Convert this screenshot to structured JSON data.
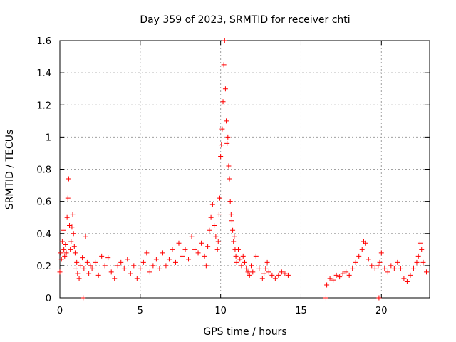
{
  "chart_data": {
    "type": "scatter",
    "title": "Day 359 of 2023, SRMTID for receiver chti",
    "xlabel": "GPS time / hours",
    "ylabel": "SRMTID / TECUs",
    "xlim": [
      0,
      23
    ],
    "ylim": [
      0,
      1.6
    ],
    "x_ticks": [
      0,
      5,
      10,
      15,
      20
    ],
    "y_ticks": [
      0,
      0.2,
      0.4,
      0.6,
      0.8,
      1,
      1.2,
      1.4,
      1.6
    ],
    "x_tick_labels": [
      "0",
      "5",
      "10",
      "15",
      "20"
    ],
    "y_tick_labels": [
      "0",
      "0.2",
      "0.4",
      "0.6",
      "0.8",
      "1",
      "1.2",
      "1.4",
      "1.6"
    ],
    "grid": true,
    "marker": "+",
    "series": [
      {
        "name": "SRMTID",
        "color": "#ff0000",
        "x": [
          0.0,
          0.05,
          0.1,
          0.15,
          0.2,
          0.25,
          0.3,
          0.35,
          0.4,
          0.45,
          0.5,
          0.55,
          0.6,
          0.65,
          0.7,
          0.75,
          0.8,
          0.85,
          0.9,
          0.95,
          1.0,
          1.05,
          1.1,
          1.2,
          1.3,
          1.4,
          1.5,
          1.6,
          1.7,
          1.8,
          1.9,
          2.0,
          2.2,
          2.4,
          2.6,
          2.8,
          3.0,
          3.2,
          3.4,
          3.6,
          3.8,
          4.0,
          4.2,
          4.4,
          4.6,
          4.8,
          5.0,
          5.2,
          5.4,
          5.6,
          5.8,
          6.0,
          6.2,
          6.4,
          6.6,
          6.8,
          7.0,
          7.2,
          7.4,
          7.6,
          7.8,
          8.0,
          8.2,
          8.4,
          8.6,
          8.8,
          9.0,
          9.1,
          9.2,
          9.3,
          9.4,
          9.5,
          9.6,
          9.7,
          9.8,
          9.85,
          9.9,
          9.95,
          10.0,
          10.05,
          10.1,
          10.15,
          10.2,
          10.25,
          10.3,
          10.35,
          10.4,
          10.45,
          10.5,
          10.55,
          10.6,
          10.65,
          10.7,
          10.75,
          10.8,
          10.85,
          10.9,
          10.95,
          11.0,
          11.1,
          11.2,
          11.3,
          11.4,
          11.5,
          11.6,
          11.7,
          11.8,
          11.9,
          12.0,
          12.2,
          12.4,
          12.6,
          12.7,
          12.8,
          12.9,
          13.0,
          13.2,
          13.4,
          13.6,
          13.8,
          14.0,
          14.2,
          1.45,
          16.55,
          16.6,
          16.8,
          17.0,
          17.2,
          17.4,
          17.6,
          17.8,
          18.0,
          18.2,
          18.4,
          18.6,
          18.8,
          18.9,
          19.0,
          19.2,
          19.4,
          19.6,
          19.8,
          19.9,
          20.0,
          20.2,
          20.4,
          20.6,
          20.8,
          21.0,
          21.2,
          21.4,
          21.6,
          21.8,
          22.0,
          22.2,
          22.3,
          22.4,
          22.5,
          22.6,
          22.8,
          19.85
        ],
        "y": [
          0.16,
          0.28,
          0.24,
          0.35,
          0.42,
          0.3,
          0.26,
          0.33,
          0.28,
          0.5,
          0.62,
          0.74,
          0.45,
          0.3,
          0.35,
          0.44,
          0.52,
          0.4,
          0.32,
          0.28,
          0.18,
          0.22,
          0.15,
          0.12,
          0.2,
          0.25,
          0.18,
          0.38,
          0.22,
          0.15,
          0.2,
          0.18,
          0.22,
          0.14,
          0.26,
          0.2,
          0.25,
          0.16,
          0.12,
          0.2,
          0.22,
          0.18,
          0.24,
          0.15,
          0.2,
          0.12,
          0.18,
          0.22,
          0.28,
          0.16,
          0.2,
          0.24,
          0.18,
          0.28,
          0.2,
          0.24,
          0.3,
          0.22,
          0.34,
          0.26,
          0.3,
          0.24,
          0.38,
          0.3,
          0.28,
          0.34,
          0.26,
          0.2,
          0.32,
          0.42,
          0.5,
          0.58,
          0.45,
          0.38,
          0.3,
          0.35,
          0.52,
          0.62,
          0.88,
          0.95,
          1.05,
          1.22,
          1.45,
          1.6,
          1.3,
          1.1,
          0.96,
          1.0,
          0.82,
          0.74,
          0.6,
          0.52,
          0.48,
          0.42,
          0.35,
          0.38,
          0.3,
          0.26,
          0.22,
          0.3,
          0.24,
          0.2,
          0.26,
          0.22,
          0.18,
          0.16,
          0.14,
          0.2,
          0.16,
          0.26,
          0.18,
          0.12,
          0.15,
          0.18,
          0.22,
          0.16,
          0.14,
          0.12,
          0.14,
          0.16,
          0.15,
          0.14,
          0.0,
          0.0,
          0.08,
          0.12,
          0.11,
          0.14,
          0.13,
          0.15,
          0.16,
          0.14,
          0.18,
          0.22,
          0.26,
          0.3,
          0.35,
          0.34,
          0.24,
          0.2,
          0.18,
          0.2,
          0.22,
          0.28,
          0.18,
          0.16,
          0.2,
          0.18,
          0.22,
          0.18,
          0.12,
          0.1,
          0.14,
          0.18,
          0.22,
          0.26,
          0.34,
          0.3,
          0.22,
          0.16,
          0.0
        ]
      }
    ]
  }
}
